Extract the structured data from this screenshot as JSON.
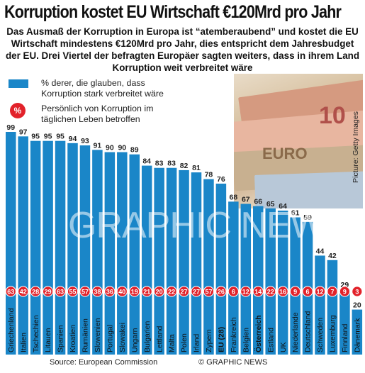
{
  "title": "Korruption kostet EU Wirtschaft €120Mrd pro Jahr",
  "subtitle": "Das Ausmaß der Korruption in Europa ist “atemberaubend” und kostet die EU Wirtschaft mindestens €120Mrd pro Jahr, dies entspricht dem Jahresbudget der EU. Drei Viertel der befragten Europäer sagten weiters, dass in ihrem Land Korruption weit verbreitet wäre",
  "legend": {
    "bar_label": "% derer, die glauben, dass Korruption stark verbreitet wäre",
    "badge_symbol": "%",
    "badge_label": "Persönlich von Korruption im täglichen Leben betroffen"
  },
  "source": "Source: European Commission",
  "credit": "© GRAPHIC NEWS",
  "photo_credit": "Picture: Getty Images",
  "watermark": "GRAPHIC NEWS",
  "colors": {
    "bar": "#1a86c8",
    "badge": "#e2222a",
    "axis_band": "#1a86c8"
  },
  "chart_data": {
    "type": "bar",
    "title": "Korruption kostet EU Wirtschaft €120Mrd pro Jahr",
    "categories": [
      "Griechenland",
      "Italien",
      "Tschechien",
      "Litauen",
      "Spanien",
      "Kroatien",
      "Rumänien",
      "Slowenien",
      "Portugal",
      "Slowakei",
      "Ungarn",
      "Bulgarien",
      "Lettland",
      "Malta",
      "Polen",
      "Irland",
      "Zypern",
      "EU (28)",
      "Frankreich",
      "Belgien",
      "Österreich",
      "Estland",
      "UK",
      "Niederlande",
      "Deutschland",
      "Schweden",
      "Luxemburg",
      "Finnland",
      "Dänemark"
    ],
    "series": [
      {
        "name": "% derer, die glauben, dass Korruption stark verbreitet wäre",
        "values": [
          99,
          97,
          95,
          95,
          95,
          94,
          93,
          91,
          90,
          90,
          89,
          84,
          83,
          83,
          82,
          81,
          78,
          76,
          68,
          67,
          66,
          65,
          64,
          61,
          59,
          44,
          42,
          29,
          20
        ]
      },
      {
        "name": "Persönlich von Korruption im täglichen Leben betroffen",
        "values": [
          63,
          42,
          28,
          29,
          63,
          55,
          57,
          38,
          36,
          40,
          19,
          21,
          20,
          22,
          27,
          27,
          57,
          26,
          6,
          12,
          14,
          22,
          16,
          9,
          6,
          12,
          7,
          9,
          3
        ]
      }
    ],
    "bold_categories": [
      "EU (28)",
      "Österreich"
    ],
    "ylim": [
      0,
      100
    ]
  }
}
